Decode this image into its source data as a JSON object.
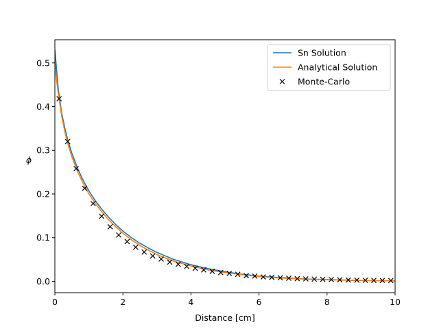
{
  "chart_data": {
    "type": "line",
    "title": "",
    "xlabel": "Distance [cm]",
    "ylabel": "ϕ",
    "xlim": [
      0,
      10
    ],
    "ylim": [
      -0.026,
      0.553
    ],
    "x_ticks": [
      0,
      2,
      4,
      6,
      8,
      10
    ],
    "x_tick_labels": [
      "0",
      "2",
      "4",
      "6",
      "8",
      "10"
    ],
    "y_ticks": [
      0.0,
      0.1,
      0.2,
      0.3,
      0.4,
      0.5
    ],
    "y_tick_labels": [
      "0.0",
      "0.1",
      "0.2",
      "0.3",
      "0.4",
      "0.5"
    ],
    "grid": false,
    "legend_position": "top-right",
    "colors": {
      "sn": "#1f77b4",
      "analytical": "#ff7f0e",
      "monte_carlo": "#000000"
    },
    "series": [
      {
        "name": "Sn Solution",
        "style": "line",
        "x": [
          0,
          0.1,
          0.2,
          0.3,
          0.4,
          0.5,
          0.65,
          0.8,
          1.0,
          1.2,
          1.4,
          1.6,
          1.8,
          2.0,
          2.25,
          2.5,
          2.75,
          3.0,
          3.5,
          4.0,
          4.5,
          5.0,
          5.5,
          6.0,
          6.5,
          7.0,
          7.5,
          8.0,
          8.5,
          9.0,
          9.5,
          10.0
        ],
        "y": [
          0.53,
          0.44,
          0.385,
          0.348,
          0.318,
          0.293,
          0.262,
          0.236,
          0.207,
          0.183,
          0.163,
          0.145,
          0.129,
          0.115,
          0.1,
          0.087,
          0.076,
          0.066,
          0.05,
          0.038,
          0.029,
          0.022,
          0.016,
          0.012,
          0.009,
          0.007,
          0.005,
          0.004,
          0.003,
          0.002,
          0.0015,
          0.001
        ]
      },
      {
        "name": "Analytical Solution",
        "style": "line",
        "x": [
          0,
          0.05,
          0.1,
          0.2,
          0.3,
          0.4,
          0.5,
          0.65,
          0.8,
          1.0,
          1.2,
          1.4,
          1.6,
          1.8,
          2.0,
          2.25,
          2.5,
          2.75,
          3.0,
          3.5,
          4.0,
          4.5,
          5.0,
          5.5,
          6.0,
          6.5,
          7.0,
          7.5,
          8.0,
          8.5,
          9.0,
          9.5,
          10.0
        ],
        "y": [
          0.5,
          0.46,
          0.43,
          0.378,
          0.34,
          0.31,
          0.285,
          0.254,
          0.229,
          0.2,
          0.177,
          0.157,
          0.139,
          0.124,
          0.11,
          0.095,
          0.082,
          0.071,
          0.061,
          0.046,
          0.035,
          0.026,
          0.02,
          0.015,
          0.011,
          0.008,
          0.006,
          0.0045,
          0.0034,
          0.0025,
          0.0019,
          0.0014,
          0.001
        ]
      },
      {
        "name": "Monte-Carlo",
        "style": "markers",
        "marker": "x",
        "x": [
          0.125,
          0.375,
          0.625,
          0.875,
          1.125,
          1.375,
          1.625,
          1.875,
          2.125,
          2.375,
          2.625,
          2.875,
          3.125,
          3.375,
          3.625,
          3.875,
          4.125,
          4.375,
          4.625,
          4.875,
          5.125,
          5.375,
          5.625,
          5.875,
          6.125,
          6.375,
          6.625,
          6.875,
          7.125,
          7.375,
          7.625,
          7.875,
          8.125,
          8.375,
          8.625,
          8.875,
          9.125,
          9.375,
          9.625,
          9.875
        ],
        "y": [
          0.418,
          0.32,
          0.258,
          0.213,
          0.178,
          0.149,
          0.125,
          0.106,
          0.091,
          0.078,
          0.067,
          0.058,
          0.051,
          0.044,
          0.039,
          0.034,
          0.03,
          0.026,
          0.023,
          0.02,
          0.018,
          0.016,
          0.013,
          0.012,
          0.01,
          0.009,
          0.008,
          0.007,
          0.006,
          0.0055,
          0.005,
          0.0045,
          0.004,
          0.0035,
          0.003,
          0.0027,
          0.0024,
          0.0021,
          0.0019,
          0.0017
        ]
      }
    ]
  }
}
